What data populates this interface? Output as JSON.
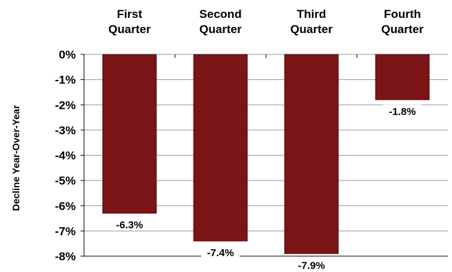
{
  "chart_data": {
    "type": "bar",
    "categories": [
      [
        "First",
        "Quarter"
      ],
      [
        "Second",
        "Quarter"
      ],
      [
        "Third",
        "Quarter"
      ],
      [
        "Fourth",
        "Quarter"
      ]
    ],
    "values": [
      -6.3,
      -7.4,
      -7.9,
      -1.8
    ],
    "data_labels": [
      "-6.3%",
      "-7.4%",
      "-7.9%",
      "-1.8%"
    ],
    "ylabel": "Decline Year-Over-Year",
    "ylim": [
      -8,
      0
    ],
    "yticks": [
      0,
      -1,
      -2,
      -3,
      -4,
      -5,
      -6,
      -7,
      -8
    ],
    "ytick_labels": [
      "0%",
      "-1%",
      "-2%",
      "-3%",
      "-4%",
      "-5%",
      "-6%",
      "-7%",
      "-8%"
    ],
    "category_axis_position": "top",
    "grid": true,
    "colors": {
      "bar": "#7b1416",
      "grid": "#999999",
      "axis": "#000000"
    }
  }
}
